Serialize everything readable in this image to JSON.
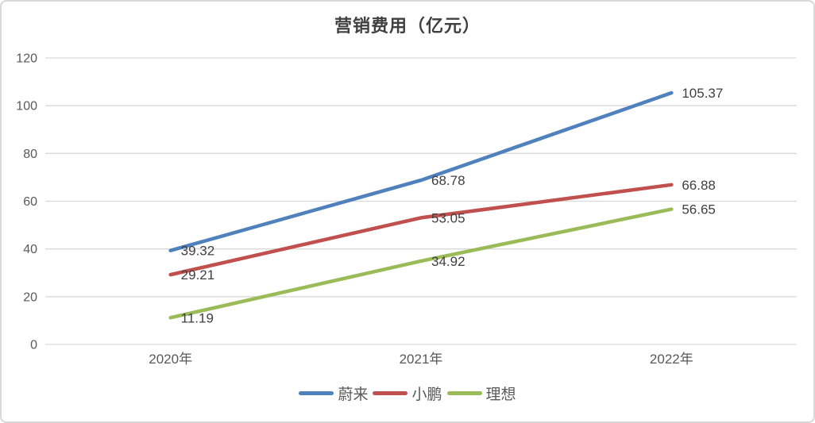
{
  "chart_data": {
    "type": "line",
    "title": "营销费用（亿元）",
    "categories": [
      "2020年",
      "2021年",
      "2022年"
    ],
    "series": [
      {
        "name": "蔚来",
        "color": "#4F81BD",
        "values": [
          39.32,
          68.78,
          105.37
        ]
      },
      {
        "name": "小鹏",
        "color": "#C0504D",
        "values": [
          29.21,
          53.05,
          66.88
        ]
      },
      {
        "name": "理想",
        "color": "#9BBB59",
        "values": [
          11.19,
          34.92,
          56.65
        ]
      }
    ],
    "data_labels": [
      "39.32",
      "68.78",
      "105.37",
      "29.21",
      "53.05",
      "66.88",
      "11.19",
      "34.92",
      "56.65"
    ],
    "xlabel": "",
    "ylabel": "",
    "ylim": [
      0,
      120
    ],
    "yticks": [
      0,
      20,
      40,
      60,
      80,
      100,
      120
    ],
    "grid": true,
    "legend_position": "bottom"
  },
  "colors": {
    "grid": "#d9d9d9",
    "axis_text": "#595959",
    "data_label_text": "#404040",
    "title_text": "#404040",
    "frame_border": "#d8d8d8",
    "background": "#ffffff"
  }
}
